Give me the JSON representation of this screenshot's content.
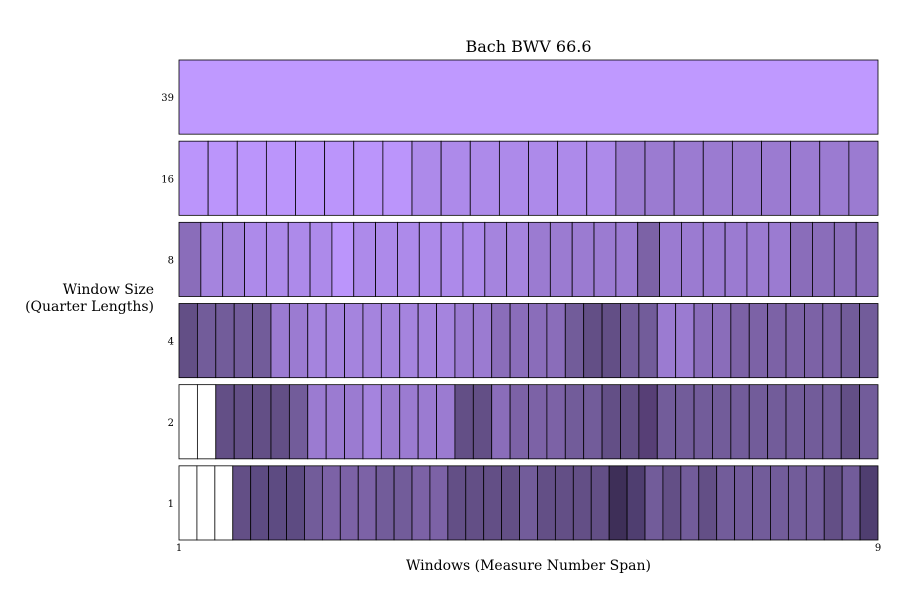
{
  "chart_data": {
    "type": "heatmap",
    "title": "Bach BWV 66.6",
    "xlabel": "Windows (Measure Number Span)",
    "ylabel_lines": [
      "Window Size",
      "(Quarter Lengths)"
    ],
    "x_ticks": [
      "1",
      "9"
    ],
    "xlim": [
      1,
      9
    ],
    "rows": [
      {
        "window": "39",
        "colors": [
          "#bf99ff"
        ]
      },
      {
        "window": "16",
        "colors": [
          "#bb95fb",
          "#bb95fb",
          "#bb95fb",
          "#bb95fb",
          "#bb95fb",
          "#bb95fb",
          "#bb95fb",
          "#bb95fb",
          "#ad8aea",
          "#ad8aea",
          "#ad8aea",
          "#ad8aea",
          "#ad8aea",
          "#ad8aea",
          "#ad8aea",
          "#9b7bd1",
          "#9b7bd1",
          "#9b7bd1",
          "#9b7bd1",
          "#9b7bd1",
          "#9b7bd1",
          "#9b7bd1",
          "#9b7bd1",
          "#9b7bd1"
        ]
      },
      {
        "window": "8",
        "colors": [
          "#8a6dba",
          "#a584de",
          "#a584de",
          "#ad8aea",
          "#ad8aea",
          "#ad8aea",
          "#ad8aea",
          "#bb95fb",
          "#ad8aea",
          "#ad8aea",
          "#ad8aea",
          "#ad8aea",
          "#ad8aea",
          "#ad8aea",
          "#a584de",
          "#a584de",
          "#9b7bd1",
          "#9b7bd1",
          "#9b7bd1",
          "#9b7bd1",
          "#9b7bd1",
          "#7c62a6",
          "#9b7bd1",
          "#9b7bd1",
          "#9b7bd1",
          "#9b7bd1",
          "#9b7bd1",
          "#9b7bd1",
          "#8a6dba",
          "#8a6dba",
          "#8a6dba",
          "#8a6dba"
        ]
      },
      {
        "window": "4",
        "colors": [
          "#634f86",
          "#725c9a",
          "#725c9a",
          "#725c9a",
          "#725c9a",
          "#9b7bd1",
          "#9b7bd1",
          "#a584de",
          "#a584de",
          "#a584de",
          "#a584de",
          "#a584de",
          "#a584de",
          "#a584de",
          "#a584de",
          "#9b7bd1",
          "#9b7bd1",
          "#8a6dba",
          "#8a6dba",
          "#8a6dba",
          "#8a6dba",
          "#725c9a",
          "#634f86",
          "#634f86",
          "#725c9a",
          "#725c9a",
          "#9b7bd1",
          "#9b7bd1",
          "#8a6dba",
          "#8a6dba",
          "#7c62a6",
          "#7c62a6",
          "#7c62a6",
          "#7c62a6",
          "#7c62a6",
          "#7c62a6",
          "#725c9a",
          "#725c9a"
        ]
      },
      {
        "window": "2",
        "colors": [
          "#ffffff",
          "#ffffff",
          "#634f86",
          "#634f86",
          "#634f86",
          "#634f86",
          "#725c9a",
          "#9b7bd1",
          "#9b7bd1",
          "#9b7bd1",
          "#a584de",
          "#9b7bd1",
          "#9b7bd1",
          "#9b7bd1",
          "#9b7bd1",
          "#634f86",
          "#634f86",
          "#8a6dba",
          "#7c62a6",
          "#7c62a6",
          "#7c62a6",
          "#725c9a",
          "#725c9a",
          "#634f86",
          "#634f86",
          "#573f76",
          "#725c9a",
          "#725c9a",
          "#725c9a",
          "#725c9a",
          "#725c9a",
          "#725c9a",
          "#725c9a",
          "#725c9a",
          "#725c9a",
          "#725c9a",
          "#634f86",
          "#725c9a"
        ]
      },
      {
        "window": "1",
        "colors": [
          "#ffffff",
          "#ffffff",
          "#ffffff",
          "#634f86",
          "#5d4b82",
          "#5d4b82",
          "#5d4b82",
          "#725c9a",
          "#7c62a6",
          "#7c62a6",
          "#7c62a6",
          "#725c9a",
          "#725c9a",
          "#7c62a6",
          "#7c62a6",
          "#634f86",
          "#634f86",
          "#634f86",
          "#634f86",
          "#725c9a",
          "#634f86",
          "#634f86",
          "#634f86",
          "#634f86",
          "#3e2f58",
          "#4f3e70",
          "#725c9a",
          "#634f86",
          "#725c9a",
          "#634f86",
          "#725c9a",
          "#725c9a",
          "#725c9a",
          "#725c9a",
          "#725c9a",
          "#725c9a",
          "#634f86",
          "#725c9a",
          "#4f3e70"
        ]
      }
    ]
  }
}
